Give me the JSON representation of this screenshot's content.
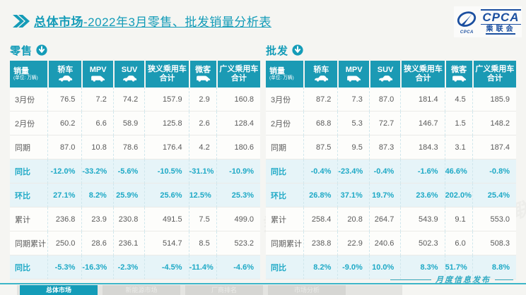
{
  "header": {
    "title_prefix": "总体市场",
    "title_rest": "-2022年3月零售、批发销量分析表",
    "logo": {
      "cpca": "CPCA",
      "org": "乘联会",
      "emblem_caption": "CPCA"
    }
  },
  "tables": [
    {
      "section_label": "零售",
      "corner": {
        "line1": "销量",
        "line2": "(单位: 万辆)"
      },
      "columns": [
        {
          "label": "轿车",
          "icon": "sedan-icon"
        },
        {
          "label": "MPV",
          "icon": "mpv-icon"
        },
        {
          "label": "SUV",
          "icon": "suv-icon"
        },
        {
          "label": "狭义乘用车合计",
          "icon": null
        },
        {
          "label": "微客",
          "icon": "minibus-icon"
        },
        {
          "label": "广义乘用车合计",
          "icon": null
        }
      ],
      "rows": [
        {
          "label": "3月份",
          "values": [
            "76.5",
            "7.2",
            "74.2",
            "157.9",
            "2.9",
            "160.8"
          ],
          "highlight": false
        },
        {
          "label": "2月份",
          "values": [
            "60.2",
            "6.6",
            "58.9",
            "125.8",
            "2.6",
            "128.4"
          ],
          "highlight": false
        },
        {
          "label": "同期",
          "values": [
            "87.0",
            "10.8",
            "78.6",
            "176.4",
            "4.2",
            "180.6"
          ],
          "highlight": false
        },
        {
          "label": "同比",
          "values": [
            "-12.0%",
            "-33.2%",
            "-5.6%",
            "-10.5%",
            "-31.1%",
            "-10.9%"
          ],
          "highlight": true
        },
        {
          "label": "环比",
          "values": [
            "27.1%",
            "8.2%",
            "25.9%",
            "25.6%",
            "12.5%",
            "25.3%"
          ],
          "highlight": true
        },
        {
          "label": "累计",
          "values": [
            "236.8",
            "23.9",
            "230.8",
            "491.5",
            "7.5",
            "499.0"
          ],
          "highlight": false
        },
        {
          "label": "同期累计",
          "values": [
            "250.0",
            "28.6",
            "236.1",
            "514.7",
            "8.5",
            "523.2"
          ],
          "highlight": false
        },
        {
          "label": "同比",
          "values": [
            "-5.3%",
            "-16.3%",
            "-2.3%",
            "-4.5%",
            "-11.4%",
            "-4.6%"
          ],
          "highlight": true
        }
      ]
    },
    {
      "section_label": "批发",
      "corner": {
        "line1": "销量",
        "line2": "(单位: 万辆)"
      },
      "columns": [
        {
          "label": "轿车",
          "icon": "sedan-icon"
        },
        {
          "label": "MPV",
          "icon": "mpv-icon"
        },
        {
          "label": "SUV",
          "icon": "suv-icon"
        },
        {
          "label": "狭义乘用车合计",
          "icon": null
        },
        {
          "label": "微客",
          "icon": "minibus-icon"
        },
        {
          "label": "广义乘用车合计",
          "icon": null
        }
      ],
      "rows": [
        {
          "label": "3月份",
          "values": [
            "87.2",
            "7.3",
            "87.0",
            "181.4",
            "4.5",
            "185.9"
          ],
          "highlight": false
        },
        {
          "label": "2月份",
          "values": [
            "68.8",
            "5.3",
            "72.7",
            "146.7",
            "1.5",
            "148.2"
          ],
          "highlight": false
        },
        {
          "label": "同期",
          "values": [
            "87.5",
            "9.5",
            "87.3",
            "184.3",
            "3.1",
            "187.4"
          ],
          "highlight": false
        },
        {
          "label": "同比",
          "values": [
            "-0.4%",
            "-23.4%",
            "-0.4%",
            "-1.6%",
            "46.6%",
            "-0.8%"
          ],
          "highlight": true
        },
        {
          "label": "环比",
          "values": [
            "26.8%",
            "37.1%",
            "19.7%",
            "23.6%",
            "202.0%",
            "25.4%"
          ],
          "highlight": true
        },
        {
          "label": "累计",
          "values": [
            "258.4",
            "20.8",
            "264.7",
            "543.9",
            "9.1",
            "553.0"
          ],
          "highlight": false
        },
        {
          "label": "同期累计",
          "values": [
            "238.8",
            "22.9",
            "240.6",
            "502.3",
            "6.0",
            "508.3"
          ],
          "highlight": false
        },
        {
          "label": "同比",
          "values": [
            "8.2%",
            "-9.0%",
            "10.0%",
            "8.3%",
            "51.7%",
            "8.8%"
          ],
          "highlight": true
        }
      ]
    }
  ],
  "footer": {
    "tabs": [
      {
        "label": "总体市场",
        "active": true
      },
      {
        "label": "新能源市场",
        "active": false
      },
      {
        "label": "厂商排名",
        "active": false
      },
      {
        "label": "市场分析",
        "active": false
      }
    ],
    "release_note": "月度信息发布"
  },
  "watermark_text": "CPCA 乘联会",
  "colors": {
    "accent": "#149cb8",
    "header_bg": "#1b9ab4",
    "highlight_bg": "#e6f4f8",
    "highlight_text": "#1ea9c6",
    "logo_blue": "#1b4fa0"
  }
}
